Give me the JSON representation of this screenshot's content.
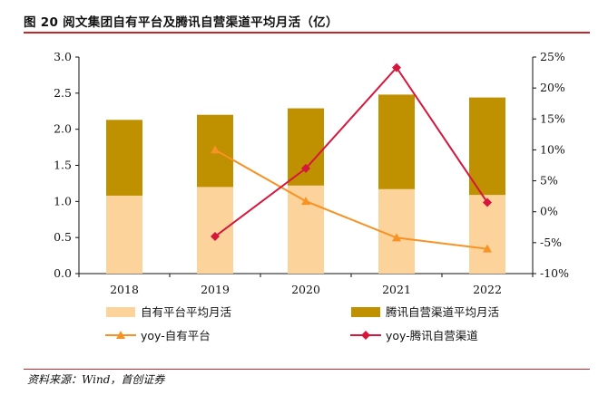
{
  "header": {
    "title": "图 20 阅文集团自有平台及腾讯自营渠道平均月活（亿）"
  },
  "source": "资料来源：Wind，首创证券",
  "colors": {
    "own": "#fdd39c",
    "tencent": "#bf9000",
    "yoy_own": "#f79225",
    "yoy_tencent": "#d6173c",
    "rule": "#c0282d"
  },
  "chart_data": {
    "type": "bar",
    "categories": [
      "2018",
      "2019",
      "2020",
      "2021",
      "2022"
    ],
    "series": [
      {
        "name": "自有平台平均月活",
        "kind": "stacked-bar",
        "axis": "left",
        "values": [
          1.08,
          1.2,
          1.22,
          1.17,
          1.09
        ]
      },
      {
        "name": "腾讯自营渠道平均月活",
        "kind": "stacked-bar",
        "axis": "left",
        "values": [
          1.05,
          1.0,
          1.07,
          1.31,
          1.35
        ]
      },
      {
        "name": "yoy-自有平台",
        "kind": "line",
        "axis": "right",
        "values": [
          null,
          10.0,
          1.7,
          -4.2,
          -6.0
        ]
      },
      {
        "name": "yoy-腾讯自营渠道",
        "kind": "line",
        "axis": "right",
        "values": [
          null,
          -4.0,
          7.0,
          23.3,
          1.5
        ]
      }
    ],
    "y_left": {
      "min": 0,
      "max": 3.0,
      "ticks": [
        "0.0",
        "0.5",
        "1.0",
        "1.5",
        "2.0",
        "2.5",
        "3.0"
      ]
    },
    "y_right": {
      "min": -10,
      "max": 25,
      "ticks": [
        "-10%",
        "-5%",
        "0%",
        "5%",
        "10%",
        "15%",
        "20%",
        "25%"
      ]
    },
    "legend": {
      "placement": "bottom"
    }
  }
}
